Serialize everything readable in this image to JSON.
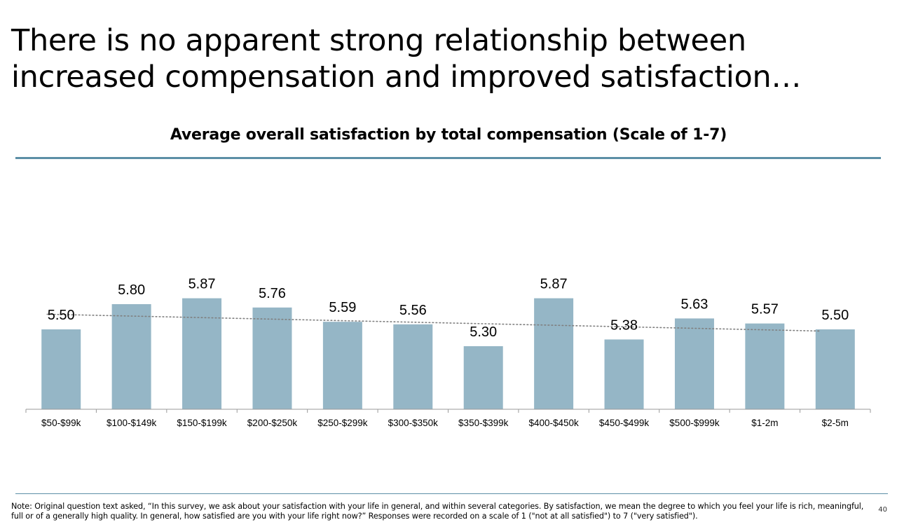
{
  "slide": {
    "title": "There is no apparent strong relationship between increased compensation and improved satisfaction…",
    "footnote": "Note: Original question text asked, “In this survey, we ask about your satisfaction with your life in general, and within several categories. By satisfaction, we mean the degree to which you feel your life is rich, meaningful, full or of a generally high quality. In general, how satisfied are you with your life right now?” Responses were recorded on a scale of 1 (\"not at all satisfied\") to 7 (\"very satisfied\").",
    "page_number": "40"
  },
  "colors": {
    "bar": "#95b6c6",
    "rule": "#5c8fa6",
    "trendline": "#7f7f7f"
  },
  "chart_data": {
    "type": "bar",
    "title": "Average overall satisfaction by total compensation (Scale of 1-7)",
    "categories": [
      "$50-$99k",
      "$100-$149k",
      "$150-$199k",
      "$200-$250k",
      "$250-$299k",
      "$300-$350k",
      "$350-$399k",
      "$400-$450k",
      "$450-$499k",
      "$500-$999k",
      "$1-2m",
      "$2-5m"
    ],
    "values": [
      5.5,
      5.8,
      5.87,
      5.76,
      5.59,
      5.56,
      5.3,
      5.87,
      5.38,
      5.63,
      5.57,
      5.5
    ],
    "value_labels": [
      "5.50",
      "5.80",
      "5.87",
      "5.76",
      "5.59",
      "5.56",
      "5.30",
      "5.87",
      "5.38",
      "5.63",
      "5.57",
      "5.50"
    ],
    "trendline": {
      "type": "linear",
      "style": "dotted",
      "start": 5.68,
      "end": 5.48
    },
    "xlabel": "",
    "ylabel": "",
    "ylim": [
      0,
      7
    ],
    "grid": false,
    "legend": "none"
  }
}
